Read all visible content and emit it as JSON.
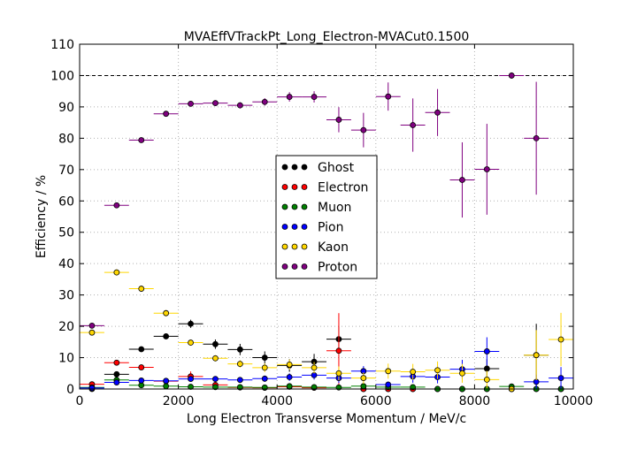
{
  "chart_data": {
    "type": "scatter",
    "title": "MVAEffVTrackPt_Long_Electron-MVACut0.1500",
    "xlabel": "Long Electron Transverse Momentum / MeV/c",
    "ylabel": "Efficiency / %",
    "xlim": [
      0,
      10000
    ],
    "ylim": [
      0,
      110
    ],
    "x_ticks": [
      0,
      2000,
      4000,
      6000,
      8000,
      10000
    ],
    "y_ticks": [
      0,
      10,
      20,
      30,
      40,
      50,
      60,
      70,
      80,
      90,
      100,
      110
    ],
    "x_tick_labels": [
      "0",
      "2000",
      "4000",
      "6000",
      "8000",
      "10000"
    ],
    "y_tick_labels": [
      "0",
      "10",
      "20",
      "30",
      "40",
      "50",
      "60",
      "70",
      "80",
      "90",
      "100",
      "110"
    ],
    "grid": true,
    "reference_line": 100,
    "legend_position": "center",
    "bin_half_width": 250,
    "series": [
      {
        "name": "Ghost",
        "color": "#000000",
        "x": [
          250,
          750,
          1250,
          1750,
          2250,
          2750,
          3250,
          3750,
          4250,
          4750,
          5250,
          5750,
          6250,
          6750,
          7250,
          7750,
          8250,
          8750,
          9250,
          9750
        ],
        "y": [
          0,
          4.7,
          12.7,
          16.8,
          20.8,
          14.3,
          12.6,
          10.0,
          7.5,
          8.7,
          15.9,
          0,
          0,
          0,
          0,
          0,
          6.5,
          0,
          10.8,
          0
        ],
        "err": [
          0,
          0.4,
          0.6,
          0.8,
          1.3,
          1.5,
          1.8,
          2.0,
          2.0,
          2.5,
          4.0,
          0,
          0,
          0,
          0,
          0,
          3.0,
          0,
          10.0,
          0
        ]
      },
      {
        "name": "Electron",
        "color": "#ff0000",
        "x": [
          250,
          750,
          1250,
          1750,
          2250,
          2750,
          3250,
          3750,
          4250,
          4750,
          5250,
          5750,
          6250,
          6750,
          7250,
          7750,
          8250,
          8750,
          9250,
          9750
        ],
        "y": [
          1.5,
          8.4,
          6.9,
          2.5,
          4.0,
          1.3,
          0.5,
          0.4,
          0.7,
          0.4,
          12.2,
          0,
          0,
          0,
          0,
          0,
          0,
          0,
          0,
          0
        ],
        "err": [
          0.3,
          0.7,
          0.9,
          0.6,
          1.6,
          0.8,
          0.5,
          0.4,
          0.7,
          0.4,
          12.0,
          0,
          0,
          0,
          0,
          0,
          0,
          0,
          0,
          0
        ]
      },
      {
        "name": "Muon",
        "color": "#008000",
        "x": [
          250,
          750,
          1250,
          1750,
          2250,
          2750,
          3250,
          3750,
          4250,
          4750,
          5250,
          5750,
          6250,
          6750,
          7250,
          7750,
          8250,
          8750,
          9250,
          9750
        ],
        "y": [
          0.5,
          2.9,
          1.2,
          0.9,
          0.7,
          0.6,
          0.6,
          0.5,
          0.9,
          0.6,
          0.5,
          0.9,
          0.6,
          0.6,
          0,
          0,
          0,
          0.8,
          0,
          0
        ],
        "err": [
          0.2,
          0.5,
          0.4,
          0.3,
          0.3,
          0.3,
          0.3,
          0.3,
          0.5,
          0.4,
          0.4,
          0.7,
          0.5,
          0.5,
          0,
          0,
          0,
          0.8,
          0,
          0
        ]
      },
      {
        "name": "Pion",
        "color": "#0000ff",
        "x": [
          250,
          750,
          1250,
          1750,
          2250,
          2750,
          3250,
          3750,
          4250,
          4750,
          5250,
          5750,
          6250,
          6750,
          7250,
          7750,
          8250,
          8750,
          9250,
          9750
        ],
        "y": [
          0.3,
          2.1,
          2.7,
          2.6,
          3.2,
          3.2,
          2.9,
          3.3,
          3.8,
          4.4,
          3.5,
          5.7,
          1.4,
          4.0,
          3.8,
          6.3,
          12.0,
          0,
          2.3,
          3.5
        ],
        "err": [
          0.1,
          0.3,
          0.4,
          0.5,
          0.7,
          0.8,
          0.9,
          1.0,
          1.2,
          1.4,
          1.6,
          1.6,
          1.0,
          2.0,
          2.0,
          3.0,
          4.5,
          0,
          2.3,
          3.5
        ]
      },
      {
        "name": "Kaon",
        "color": "#ffd700",
        "x": [
          250,
          750,
          1250,
          1750,
          2250,
          2750,
          3250,
          3750,
          4250,
          4750,
          5250,
          5750,
          6250,
          6750,
          7250,
          7750,
          8250,
          8750,
          9250,
          9750
        ],
        "y": [
          18.0,
          37.2,
          32.0,
          24.2,
          14.8,
          9.8,
          8.0,
          6.8,
          7.8,
          6.8,
          5.0,
          3.5,
          5.7,
          5.5,
          6.0,
          5.0,
          3.0,
          0,
          10.8,
          15.8
        ],
        "err": [
          0.6,
          1.0,
          1.0,
          1.0,
          1.0,
          1.0,
          1.2,
          1.4,
          1.6,
          1.8,
          2.2,
          1.8,
          2.4,
          2.5,
          2.8,
          3.0,
          2.8,
          0,
          8.0,
          8.5
        ]
      },
      {
        "name": "Proton",
        "color": "#800080",
        "x": [
          250,
          750,
          1250,
          1750,
          2250,
          2750,
          3250,
          3750,
          4250,
          4750,
          5250,
          5750,
          6250,
          6750,
          7250,
          7750,
          8250,
          8750,
          9250,
          9750
        ],
        "y": [
          20.2,
          58.6,
          79.4,
          87.8,
          91.0,
          91.2,
          90.5,
          91.6,
          93.2,
          93.2,
          85.9,
          82.6,
          93.3,
          84.2,
          88.2,
          66.7,
          70.1,
          100.0,
          80.0,
          null
        ],
        "err": [
          0.6,
          0.8,
          0.7,
          0.6,
          0.6,
          0.8,
          1.0,
          1.2,
          1.5,
          1.8,
          4.0,
          5.5,
          4.5,
          8.5,
          7.5,
          12.0,
          14.5,
          1.0,
          18.0,
          0
        ]
      }
    ]
  }
}
